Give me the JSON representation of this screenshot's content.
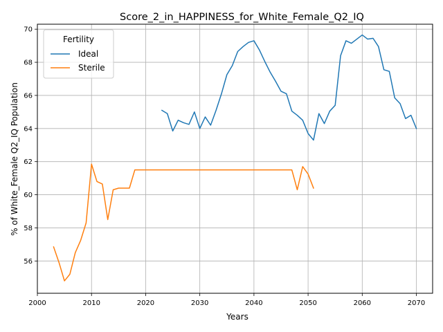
{
  "chart_data": {
    "type": "line",
    "title": "Score_2_in_HAPPINESS_for_White_Female_Q2_IQ",
    "xlabel": "Years",
    "ylabel": "% of White_Female Q2_IQ Population",
    "xlim": [
      2000,
      2073
    ],
    "ylim": [
      54.05,
      70.3
    ],
    "xticks": [
      2000,
      2010,
      2020,
      2030,
      2040,
      2050,
      2060,
      2070
    ],
    "yticks": [
      56,
      58,
      60,
      62,
      64,
      66,
      68,
      70
    ],
    "grid": true,
    "legend": {
      "title": "Fertility",
      "position": "top-left"
    },
    "series": [
      {
        "name": "Ideal",
        "color": "#1f77b4",
        "x": [
          2023,
          2024,
          2025,
          2026,
          2027,
          2028,
          2029,
          2030,
          2031,
          2032,
          2033,
          2034,
          2035,
          2036,
          2037,
          2038,
          2039,
          2040,
          2041,
          2042,
          2043,
          2044,
          2045,
          2046,
          2047,
          2048,
          2049,
          2050,
          2051,
          2052,
          2053,
          2054,
          2055,
          2056,
          2057,
          2058,
          2059,
          2060,
          2061,
          2062,
          2063,
          2064,
          2065,
          2066,
          2067,
          2068,
          2069,
          2070
        ],
        "y": [
          65.1,
          64.9,
          63.85,
          64.5,
          64.35,
          64.25,
          65.0,
          64.0,
          64.7,
          64.2,
          65.1,
          66.1,
          67.25,
          67.8,
          68.65,
          68.95,
          69.2,
          69.3,
          68.75,
          68.05,
          67.4,
          66.85,
          66.25,
          66.1,
          65.05,
          64.8,
          64.5,
          63.7,
          63.3,
          64.9,
          64.3,
          65.05,
          65.4,
          68.4,
          69.3,
          69.15,
          69.4,
          69.65,
          69.4,
          69.45,
          68.95,
          67.55,
          67.45,
          65.85,
          65.5,
          64.6,
          64.8,
          64.0
        ]
      },
      {
        "name": "Sterile",
        "color": "#ff7f0e",
        "x": [
          2003,
          2004,
          2005,
          2006,
          2007,
          2008,
          2009,
          2010,
          2011,
          2012,
          2013,
          2014,
          2015,
          2016,
          2017,
          2018,
          2019,
          2020,
          2021,
          2022,
          2023,
          2024,
          2025,
          2026,
          2027,
          2028,
          2029,
          2030,
          2031,
          2032,
          2033,
          2034,
          2035,
          2036,
          2037,
          2038,
          2039,
          2040,
          2041,
          2042,
          2043,
          2044,
          2045,
          2046,
          2047,
          2048,
          2049,
          2050,
          2051
        ],
        "y": [
          56.85,
          55.9,
          54.8,
          55.2,
          56.5,
          57.25,
          58.3,
          61.85,
          60.8,
          60.65,
          58.5,
          60.3,
          60.4,
          60.4,
          60.4,
          61.5,
          61.5,
          61.5,
          61.5,
          61.5,
          61.5,
          61.5,
          61.5,
          61.5,
          61.5,
          61.5,
          61.5,
          61.5,
          61.5,
          61.5,
          61.5,
          61.5,
          61.5,
          61.5,
          61.5,
          61.5,
          61.5,
          61.5,
          61.5,
          61.5,
          61.5,
          61.5,
          61.5,
          61.5,
          61.5,
          60.3,
          61.7,
          61.25,
          60.4
        ]
      }
    ]
  }
}
